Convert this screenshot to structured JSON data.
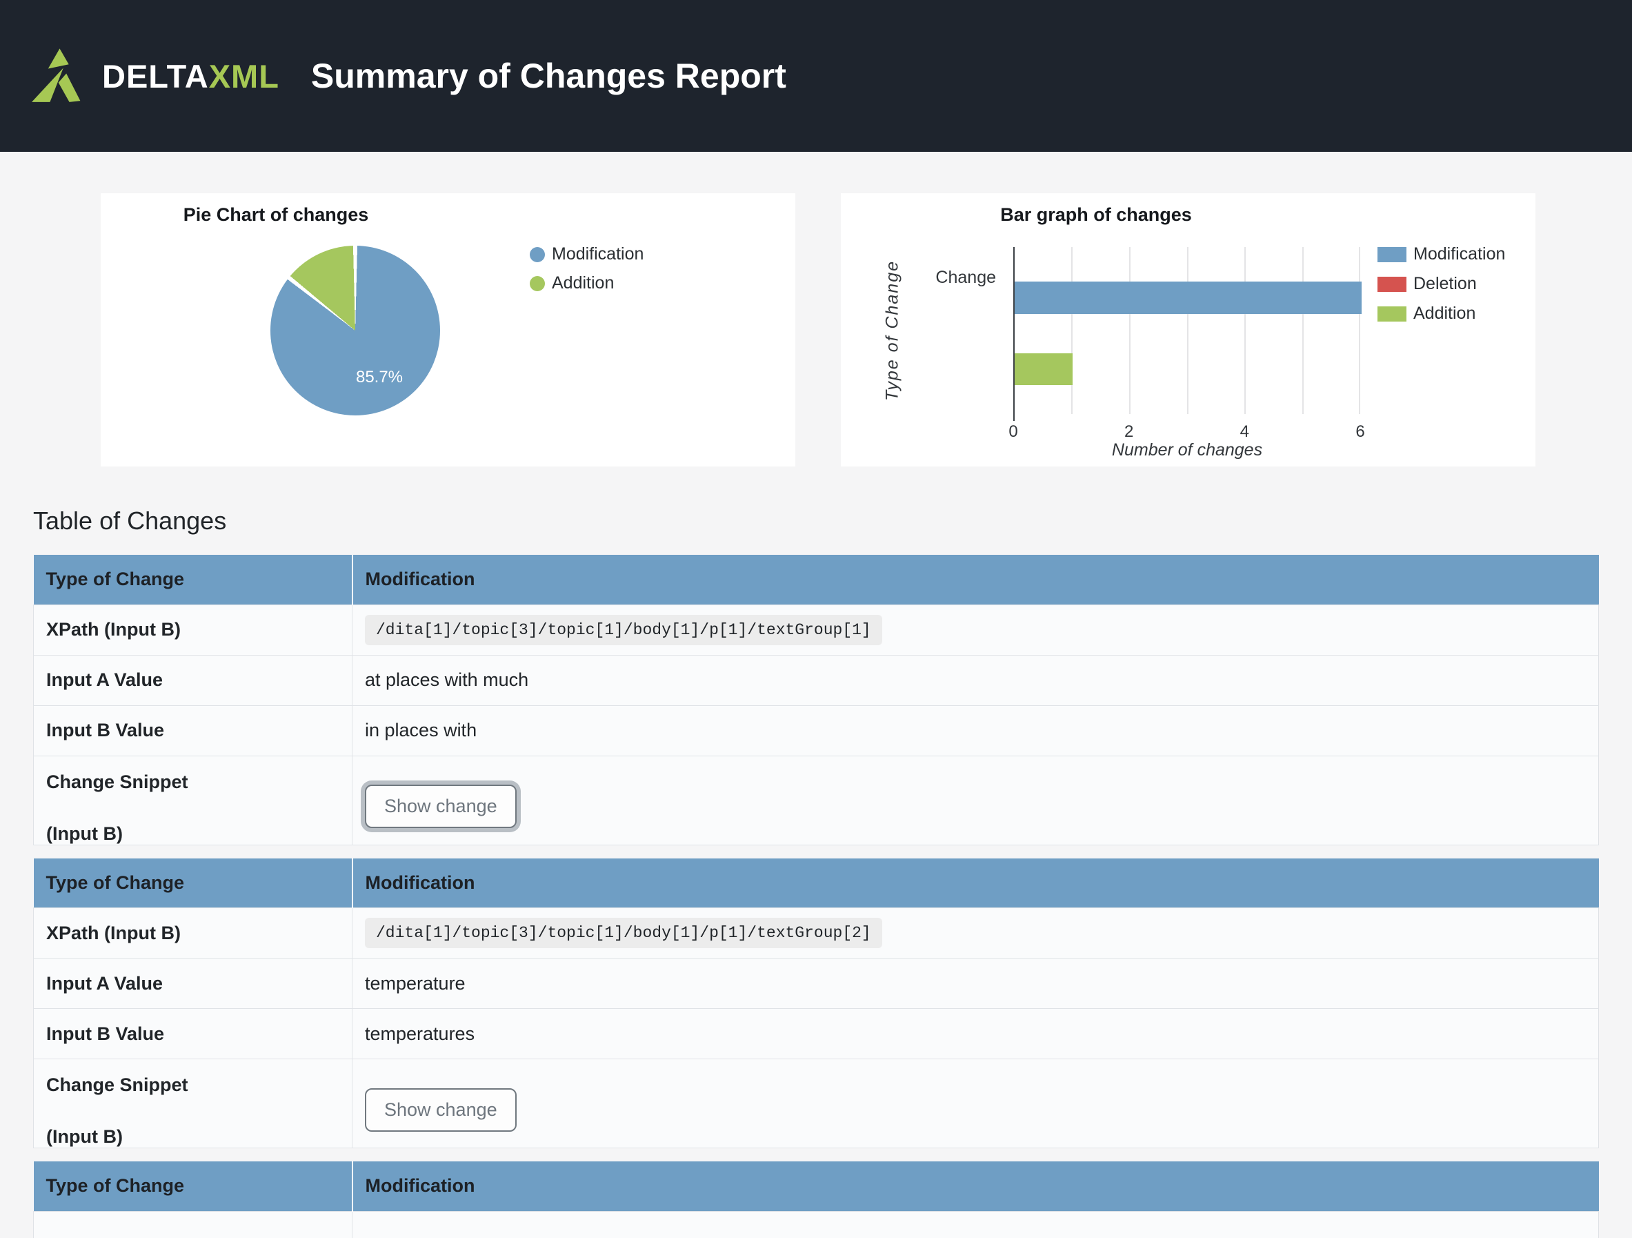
{
  "colors": {
    "header_bg": "#1e242d",
    "logo_green": "#a6c854",
    "table_header_blue": "#6f9ec4",
    "modification_blue": "#6f9ec4",
    "deletion_red": "#d5534f",
    "addition_green": "#a5c75e"
  },
  "header": {
    "brand_delta": "DELTA",
    "brand_xml": "XML",
    "title": "Summary of Changes Report"
  },
  "chart_data": [
    {
      "type": "pie",
      "title": "Pie Chart of changes",
      "labels": [
        "Modification",
        "Addition"
      ],
      "values": [
        85.7,
        14.3
      ],
      "colors": [
        "#6f9ec4",
        "#a5c75e"
      ],
      "percent_label": "85.7%",
      "legend_position": "right"
    },
    {
      "type": "bar",
      "orientation": "horizontal",
      "title": "Bar graph of changes",
      "categories": [
        "Change"
      ],
      "series": [
        {
          "name": "Modification",
          "values": [
            6
          ],
          "color": "#6f9ec4"
        },
        {
          "name": "Deletion",
          "values": [
            0
          ],
          "color": "#d5534f"
        },
        {
          "name": "Addition",
          "values": [
            1
          ],
          "color": "#a5c75e"
        }
      ],
      "xlabel": "Number of changes",
      "ylabel": "Type of Change",
      "xlim": [
        0,
        6
      ],
      "ticks": [
        "0",
        "2",
        "4",
        "6"
      ],
      "grid": true,
      "legend_position": "right"
    }
  ],
  "table": {
    "heading": "Table of Changes",
    "labels": {
      "type": "Type of Change",
      "xpath": "XPath (Input B)",
      "input_a": "Input A Value",
      "input_b": "Input B Value",
      "snippet_line1": "Change Snippet",
      "snippet_line2": "(Input B)"
    },
    "sections": [
      {
        "type_value": "Modification",
        "xpath": "/dita[1]/topic[3]/topic[1]/body[1]/p[1]/textGroup[1]",
        "input_a": "at places with much",
        "input_b": "in places with",
        "button_label": "Show change"
      },
      {
        "type_value": "Modification",
        "xpath": "/dita[1]/topic[3]/topic[1]/body[1]/p[1]/textGroup[2]",
        "input_a": "temperature",
        "input_b": "temperatures",
        "button_label": "Show change"
      },
      {
        "type_value": "Modification"
      }
    ]
  }
}
